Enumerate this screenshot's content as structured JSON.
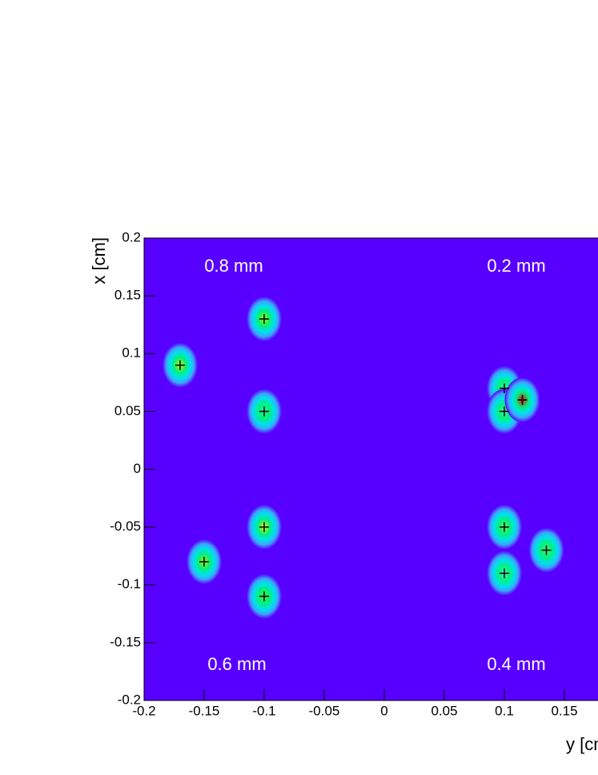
{
  "chart_data": {
    "type": "contour",
    "x_label": "y [cm]",
    "y_label": "x [cm]",
    "annotations": [
      "0.8 mm",
      "0.2 mm",
      "0.6 mm",
      "0.4 mm"
    ],
    "background": "#5800ff",
    "x": [
      -0.17,
      -0.1,
      -0.1,
      -0.1,
      -0.15,
      -0.1,
      0.1,
      0.1,
      0.115,
      0.1,
      0.1,
      0.135
    ],
    "values": [
      0.09,
      0.13,
      0.05,
      -0.05,
      -0.08,
      -0.11,
      0.07,
      0.05,
      0.06,
      -0.05,
      -0.09,
      -0.07
    ],
    "colors": [
      "#c8f000",
      "#a0f000",
      "#20f0a0",
      "#f0f000",
      "#a0f000",
      "#40f040",
      "#40f0a0",
      "#40f0a0",
      "#ff0000",
      "#60f060",
      "#40f0c0",
      "#40f080"
    ],
    "xlim": [
      -0.2,
      0.2
    ],
    "ylim": [
      -0.2,
      0.2
    ],
    "xticks": [
      -0.2,
      -0.15,
      -0.1,
      -0.05,
      0,
      0.05,
      0.1,
      0.15
    ],
    "yticks": [
      -0.2,
      -0.15,
      -0.1,
      -0.05,
      0,
      0.05,
      0.1,
      0.15,
      0.2
    ]
  }
}
